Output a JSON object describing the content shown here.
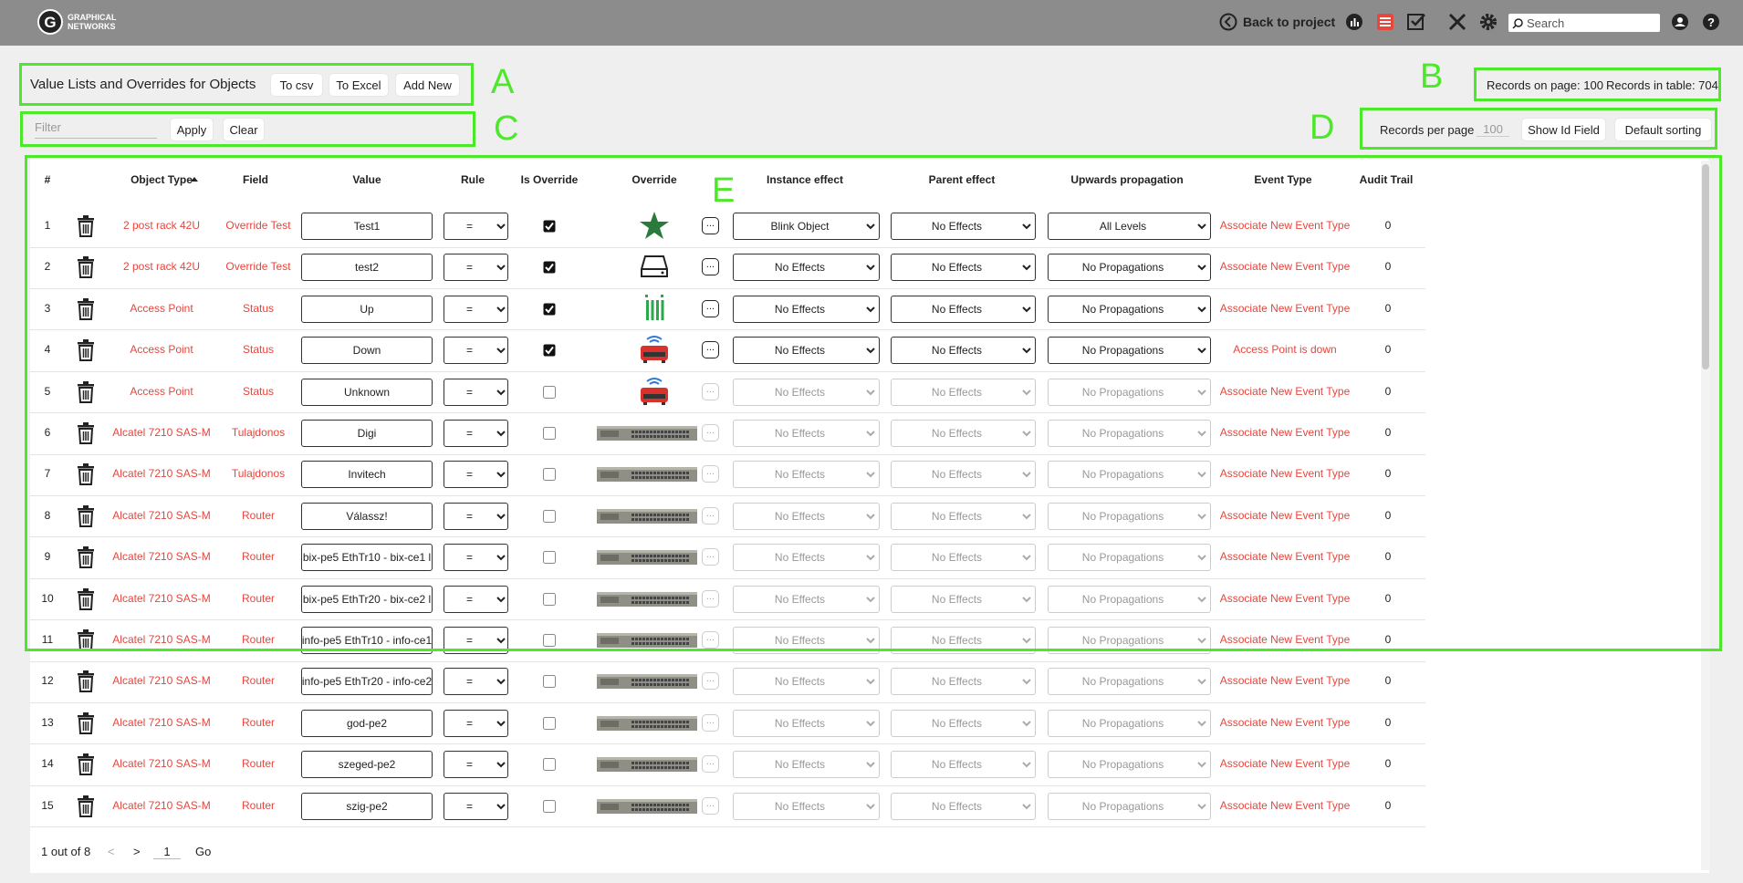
{
  "header": {
    "logo_lines": [
      "GRAPHICAL",
      "NETWORKS"
    ],
    "back": "Back to project",
    "search_placeholder": "Search"
  },
  "toolbar": {
    "title": "Value Lists and Overrides for Objects",
    "buttons": [
      "To csv",
      "To Excel",
      "Add New"
    ]
  },
  "records": {
    "on_page": "Records on page: 100",
    "in_table": "Records in table: 704"
  },
  "filter": {
    "placeholder": "Filter",
    "apply": "Apply",
    "clear": "Clear"
  },
  "options": {
    "per_page_label": "Records per page",
    "per_page": "100",
    "show_id": "Show Id Field",
    "default_sorting": "Default sorting"
  },
  "annotations": [
    "A",
    "B",
    "C",
    "D",
    "E"
  ],
  "table": {
    "columns": [
      "#",
      "Object Type",
      "Field",
      "Value",
      "Rule",
      "Is Override",
      "Override",
      "Instance effect",
      "Parent effect",
      "Upwards propagation",
      "Event Type",
      "Audit Trail"
    ],
    "more_button": "...",
    "rows": [
      {
        "n": 1,
        "object_type": "2 post rack 42U",
        "field": "Override Test",
        "value": "Test1",
        "rule": "=",
        "is_override": true,
        "instance_effect": "Blink Object",
        "parent_effect": "No Effects",
        "upwards": "All Levels",
        "event_type": "Associate New Event Type",
        "audit": 0
      },
      {
        "n": 2,
        "object_type": "2 post rack 42U",
        "field": "Override Test",
        "value": "test2",
        "rule": "=",
        "is_override": true,
        "instance_effect": "No Effects",
        "parent_effect": "No Effects",
        "upwards": "No Propagations",
        "event_type": "Associate New Event Type",
        "audit": 0
      },
      {
        "n": 3,
        "object_type": "Access Point",
        "field": "Status",
        "value": "Up",
        "rule": "=",
        "is_override": true,
        "instance_effect": "No Effects",
        "parent_effect": "No Effects",
        "upwards": "No Propagations",
        "event_type": "Associate New Event Type",
        "audit": 0
      },
      {
        "n": 4,
        "object_type": "Access Point",
        "field": "Status",
        "value": "Down",
        "rule": "=",
        "is_override": true,
        "instance_effect": "No Effects",
        "parent_effect": "No Effects",
        "upwards": "No Propagations",
        "event_type": "Access Point is down",
        "audit": 0
      },
      {
        "n": 5,
        "object_type": "Access Point",
        "field": "Status",
        "value": "Unknown",
        "rule": "=",
        "is_override": false,
        "instance_effect": "No Effects",
        "parent_effect": "No Effects",
        "upwards": "No Propagations",
        "event_type": "Associate New Event Type",
        "audit": 0
      },
      {
        "n": 6,
        "object_type": "Alcatel 7210 SAS-M",
        "field": "Tulajdonos",
        "value": "Digi",
        "rule": "=",
        "is_override": false,
        "instance_effect": "No Effects",
        "parent_effect": "No Effects",
        "upwards": "No Propagations",
        "event_type": "Associate New Event Type",
        "audit": 0
      },
      {
        "n": 7,
        "object_type": "Alcatel 7210 SAS-M",
        "field": "Tulajdonos",
        "value": "Invitech",
        "rule": "=",
        "is_override": false,
        "instance_effect": "No Effects",
        "parent_effect": "No Effects",
        "upwards": "No Propagations",
        "event_type": "Associate New Event Type",
        "audit": 0
      },
      {
        "n": 8,
        "object_type": "Alcatel 7210 SAS-M",
        "field": "Router",
        "value": "Válassz!",
        "rule": "=",
        "is_override": false,
        "instance_effect": "No Effects",
        "parent_effect": "No Effects",
        "upwards": "No Propagations",
        "event_type": "Associate New Event Type",
        "audit": 0
      },
      {
        "n": 9,
        "object_type": "Alcatel 7210 SAS-M",
        "field": "Router",
        "value": "bix-pe5 EthTr10 - bix-ce1 l",
        "rule": "=",
        "is_override": false,
        "instance_effect": "No Effects",
        "parent_effect": "No Effects",
        "upwards": "No Propagations",
        "event_type": "Associate New Event Type",
        "audit": 0
      },
      {
        "n": 10,
        "object_type": "Alcatel 7210 SAS-M",
        "field": "Router",
        "value": "bix-pe5 EthTr20 - bix-ce2 l",
        "rule": "=",
        "is_override": false,
        "instance_effect": "No Effects",
        "parent_effect": "No Effects",
        "upwards": "No Propagations",
        "event_type": "Associate New Event Type",
        "audit": 0
      },
      {
        "n": 11,
        "object_type": "Alcatel 7210 SAS-M",
        "field": "Router",
        "value": "info-pe5 EthTr10 - info-ce1",
        "rule": "=",
        "is_override": false,
        "instance_effect": "No Effects",
        "parent_effect": "No Effects",
        "upwards": "No Propagations",
        "event_type": "Associate New Event Type",
        "audit": 0
      },
      {
        "n": 12,
        "object_type": "Alcatel 7210 SAS-M",
        "field": "Router",
        "value": "info-pe5 EthTr20 - info-ce2",
        "rule": "=",
        "is_override": false,
        "instance_effect": "No Effects",
        "parent_effect": "No Effects",
        "upwards": "No Propagations",
        "event_type": "Associate New Event Type",
        "audit": 0
      },
      {
        "n": 13,
        "object_type": "Alcatel 7210 SAS-M",
        "field": "Router",
        "value": "god-pe2",
        "rule": "=",
        "is_override": false,
        "instance_effect": "No Effects",
        "parent_effect": "No Effects",
        "upwards": "No Propagations",
        "event_type": "Associate New Event Type",
        "audit": 0
      },
      {
        "n": 14,
        "object_type": "Alcatel 7210 SAS-M",
        "field": "Router",
        "value": "szeged-pe2",
        "rule": "=",
        "is_override": false,
        "instance_effect": "No Effects",
        "parent_effect": "No Effects",
        "upwards": "No Propagations",
        "event_type": "Associate New Event Type",
        "audit": 0
      },
      {
        "n": 15,
        "object_type": "Alcatel 7210 SAS-M",
        "field": "Router",
        "value": "szig-pe2",
        "rule": "=",
        "is_override": false,
        "instance_effect": "No Effects",
        "parent_effect": "No Effects",
        "upwards": "No Propagations",
        "event_type": "Associate New Event Type",
        "audit": 0
      }
    ]
  },
  "pagination": {
    "status": "1 out of 8",
    "prev": "<",
    "next": ">",
    "page": "1",
    "go": "Go"
  }
}
